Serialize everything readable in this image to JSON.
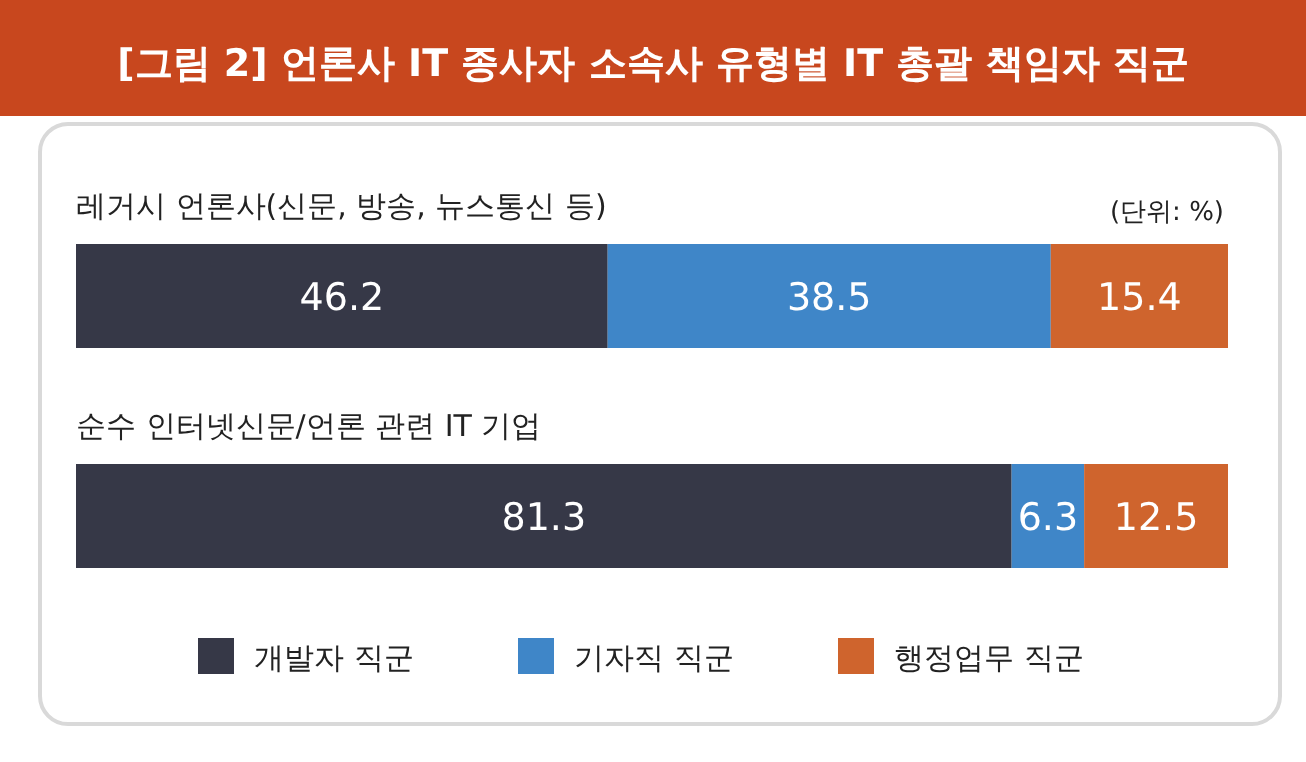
{
  "chart_data": {
    "type": "bar",
    "orientation": "horizontal",
    "stacked": true,
    "data_labels": true,
    "legend": "bottom",
    "title": "[그림 2] 언론사 IT 종사자 소속사 유형별 IT 총괄 책임자 직군",
    "annotations": [
      "(단위: %)"
    ],
    "categories": [
      "레거시 언론사(신문, 방송, 뉴스통신 등)",
      "순수 인터넷신문/언론 관련 IT 기업"
    ],
    "series": [
      {
        "name": "개발자 직군",
        "color": "#363847",
        "values": [
          46.2,
          81.3
        ]
      },
      {
        "name": "기자직 직군",
        "color": "#3f86c8",
        "values": [
          38.5,
          6.3
        ]
      },
      {
        "name": "행정업무 직군",
        "color": "#cf642d",
        "values": [
          15.4,
          12.5
        ]
      }
    ]
  }
}
